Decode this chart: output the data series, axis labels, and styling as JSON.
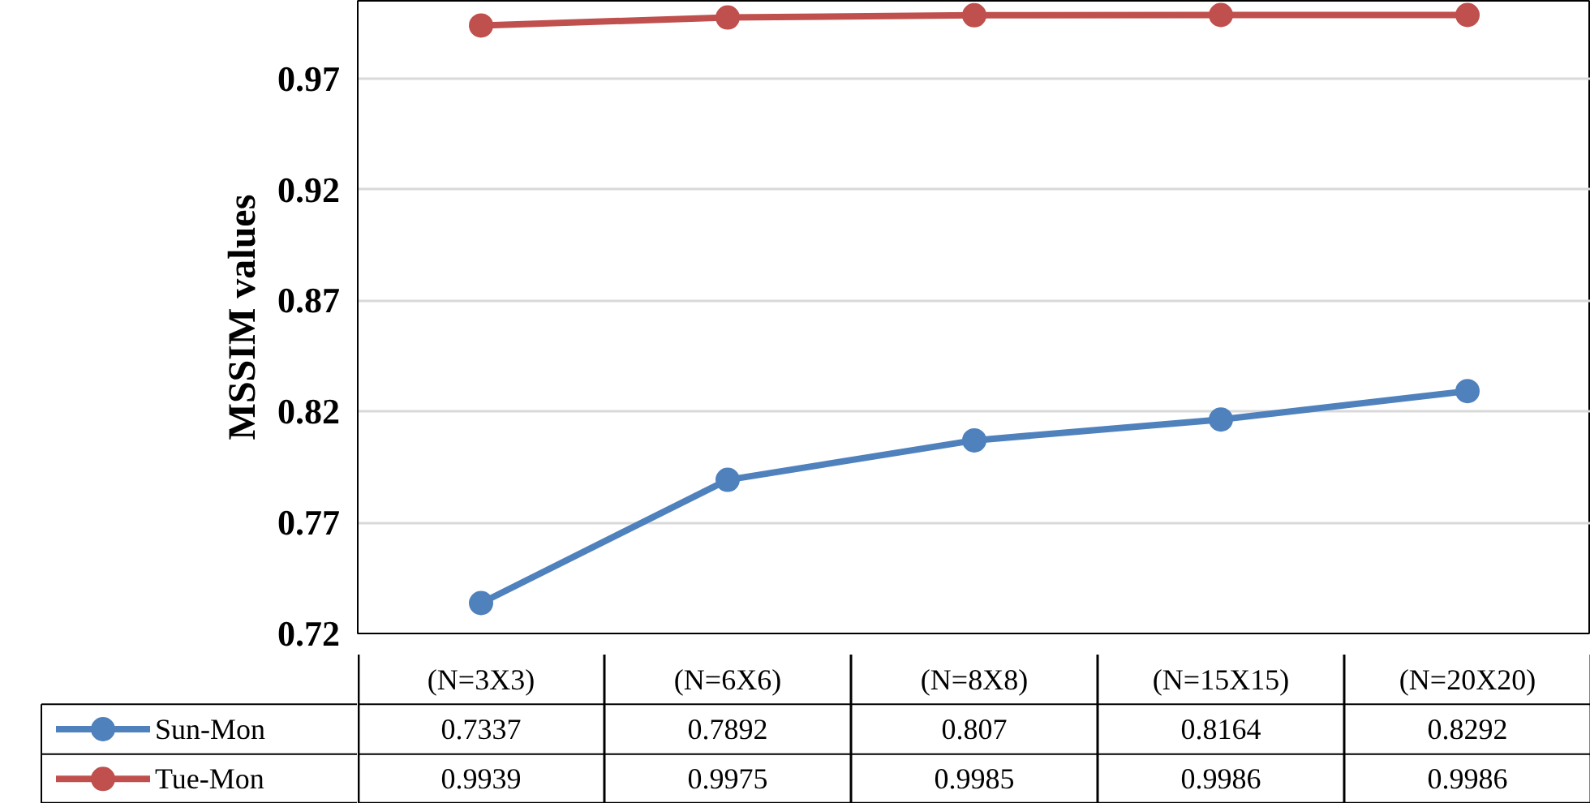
{
  "chart_data": {
    "type": "line",
    "ylabel": "MSSIM values",
    "categories": [
      "(N=3X3)",
      "(N=6X6)",
      "(N=8X8)",
      "(N=15X15)",
      "(N=20X20)"
    ],
    "series": [
      {
        "name": "Sun-Mon",
        "color": "#4f81bd",
        "values": [
          0.7337,
          0.7892,
          0.807,
          0.8164,
          0.8292
        ]
      },
      {
        "name": "Tue-Mon",
        "color": "#c0504d",
        "values": [
          0.9939,
          0.9975,
          0.9985,
          0.9986,
          0.9986
        ]
      }
    ],
    "ylim": [
      0.72,
      1.005
    ],
    "yticks": [
      0.72,
      0.77,
      0.82,
      0.87,
      0.92,
      0.97
    ],
    "grid": "y",
    "legend": "bottom",
    "marker": "circle",
    "line_style": "solid",
    "data_labels": true
  }
}
